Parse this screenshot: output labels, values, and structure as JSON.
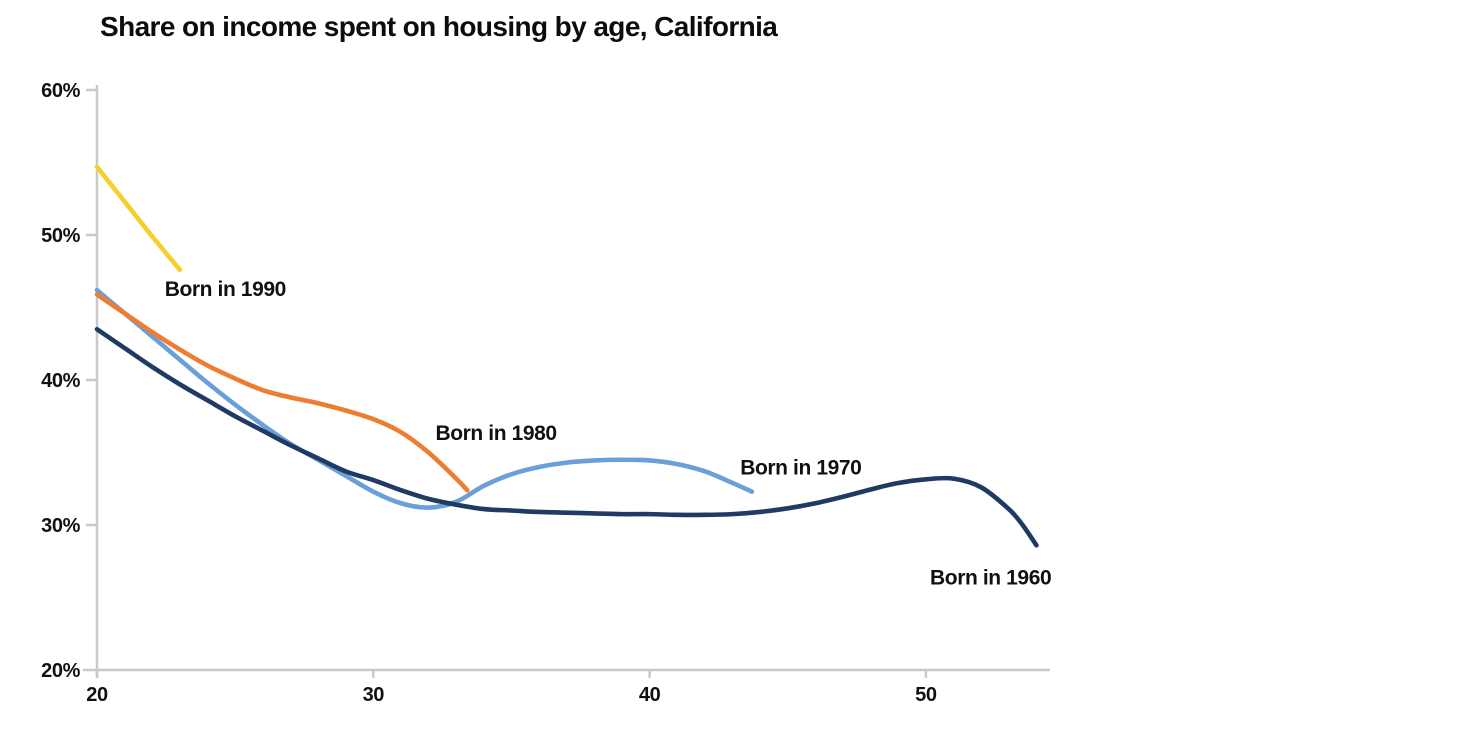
{
  "chart_data": {
    "type": "line",
    "title": "Share on income spent on housing by age, California",
    "xlabel": "",
    "ylabel": "",
    "xlim": [
      20,
      54.5
    ],
    "ylim": [
      20,
      61
    ],
    "grid": false,
    "legend_position": "inline-labels",
    "axis_color": "#c9c9c9",
    "text_color": "#111111",
    "x_axis": {
      "ticks": [
        {
          "value": 20,
          "label": "20"
        },
        {
          "value": 30,
          "label": "30"
        },
        {
          "value": 40,
          "label": "40"
        },
        {
          "value": 50,
          "label": "50"
        }
      ]
    },
    "y_axis": {
      "ticks": [
        {
          "value": 20,
          "label": "20%"
        },
        {
          "value": 30,
          "label": "30%"
        },
        {
          "value": 40,
          "label": "40%"
        },
        {
          "value": 50,
          "label": "50%"
        },
        {
          "value": 60,
          "label": "60%"
        }
      ]
    },
    "series": [
      {
        "name": "Born in 1970",
        "color": "#6a9fd8",
        "points": [
          [
            20,
            46.2
          ],
          [
            21,
            44.6
          ],
          [
            22,
            43.0
          ],
          [
            23,
            41.4
          ],
          [
            24,
            39.8
          ],
          [
            25,
            38.3
          ],
          [
            26,
            36.9
          ],
          [
            27,
            35.6
          ],
          [
            28,
            34.5
          ],
          [
            29,
            33.4
          ],
          [
            30,
            32.3
          ],
          [
            31,
            31.5
          ],
          [
            32,
            31.2
          ],
          [
            33,
            31.6
          ],
          [
            34,
            32.7
          ],
          [
            35,
            33.5
          ],
          [
            36,
            34.0
          ],
          [
            37,
            34.3
          ],
          [
            38,
            34.45
          ],
          [
            39,
            34.5
          ],
          [
            40,
            34.45
          ],
          [
            41,
            34.2
          ],
          [
            42,
            33.7
          ],
          [
            43,
            32.9
          ],
          [
            43.7,
            32.3
          ]
        ]
      },
      {
        "name": "Born in 1960",
        "color": "#1f3a63",
        "points": [
          [
            20,
            43.5
          ],
          [
            21,
            42.2
          ],
          [
            22,
            40.9
          ],
          [
            23,
            39.7
          ],
          [
            24,
            38.6
          ],
          [
            25,
            37.5
          ],
          [
            26,
            36.5
          ],
          [
            27,
            35.5
          ],
          [
            28,
            34.6
          ],
          [
            29,
            33.7
          ],
          [
            30,
            33.1
          ],
          [
            31,
            32.4
          ],
          [
            32,
            31.8
          ],
          [
            33,
            31.4
          ],
          [
            34,
            31.1
          ],
          [
            35,
            31.0
          ],
          [
            36,
            30.9
          ],
          [
            37,
            30.85
          ],
          [
            38,
            30.8
          ],
          [
            39,
            30.75
          ],
          [
            40,
            30.75
          ],
          [
            41,
            30.7
          ],
          [
            42,
            30.7
          ],
          [
            43,
            30.75
          ],
          [
            44,
            30.9
          ],
          [
            45,
            31.15
          ],
          [
            46,
            31.5
          ],
          [
            47,
            31.95
          ],
          [
            48,
            32.45
          ],
          [
            49,
            32.9
          ],
          [
            50,
            33.15
          ],
          [
            51,
            33.2
          ],
          [
            52,
            32.6
          ],
          [
            53,
            31.1
          ],
          [
            53.5,
            30.0
          ],
          [
            54,
            28.6
          ]
        ]
      },
      {
        "name": "Born in 1980",
        "color": "#ed7d31",
        "points": [
          [
            20,
            45.9
          ],
          [
            21,
            44.6
          ],
          [
            22,
            43.3
          ],
          [
            23,
            42.1
          ],
          [
            24,
            41.0
          ],
          [
            25,
            40.1
          ],
          [
            26,
            39.3
          ],
          [
            27,
            38.8
          ],
          [
            28,
            38.4
          ],
          [
            29,
            37.9
          ],
          [
            30,
            37.3
          ],
          [
            31,
            36.4
          ],
          [
            32,
            35.0
          ],
          [
            33,
            33.2
          ],
          [
            33.4,
            32.4
          ]
        ]
      },
      {
        "name": "Born in 1990",
        "color": "#f7cf2d",
        "points": [
          [
            20,
            54.7
          ],
          [
            21,
            52.3
          ],
          [
            22,
            49.9
          ],
          [
            23,
            47.6
          ]
        ]
      }
    ],
    "annotations": [
      {
        "text": "Born in 1990",
        "x": 22.45,
        "y": 45.8
      },
      {
        "text": "Born in 1980",
        "x": 32.25,
        "y": 35.85
      },
      {
        "text": "Born in 1970",
        "x": 43.28,
        "y": 33.5
      },
      {
        "text": "Born in 1960",
        "x": 50.15,
        "y": 25.9
      }
    ]
  }
}
